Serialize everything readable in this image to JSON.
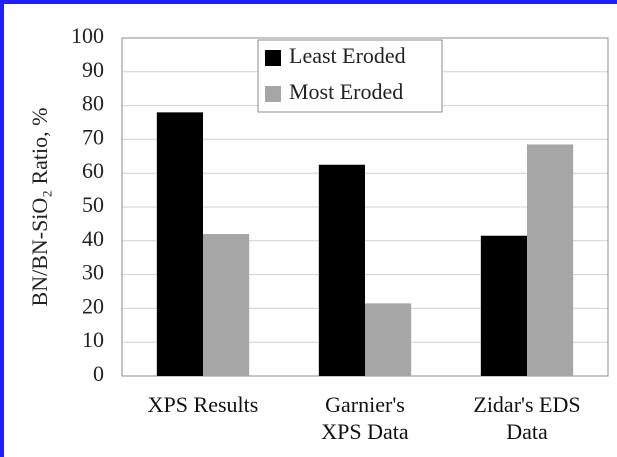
{
  "chart_data": {
    "type": "bar",
    "y_label": "BN/BN-SiO₂ Ratio, %",
    "categories": [
      "XPS Results",
      "Garnier's\nXPS Data",
      "Zidar's EDS\nData"
    ],
    "series": [
      {
        "name": "Least Eroded",
        "color": "#000000",
        "values": [
          78,
          62.5,
          41.5
        ]
      },
      {
        "name": "Most Eroded",
        "color": "#a6a6a6",
        "values": [
          42,
          21.5,
          68.5
        ]
      }
    ],
    "ylim": [
      0,
      100
    ],
    "yticks": [
      0,
      10,
      20,
      30,
      40,
      50,
      60,
      70,
      80,
      90,
      100
    ],
    "grid": true,
    "legend": "top"
  }
}
